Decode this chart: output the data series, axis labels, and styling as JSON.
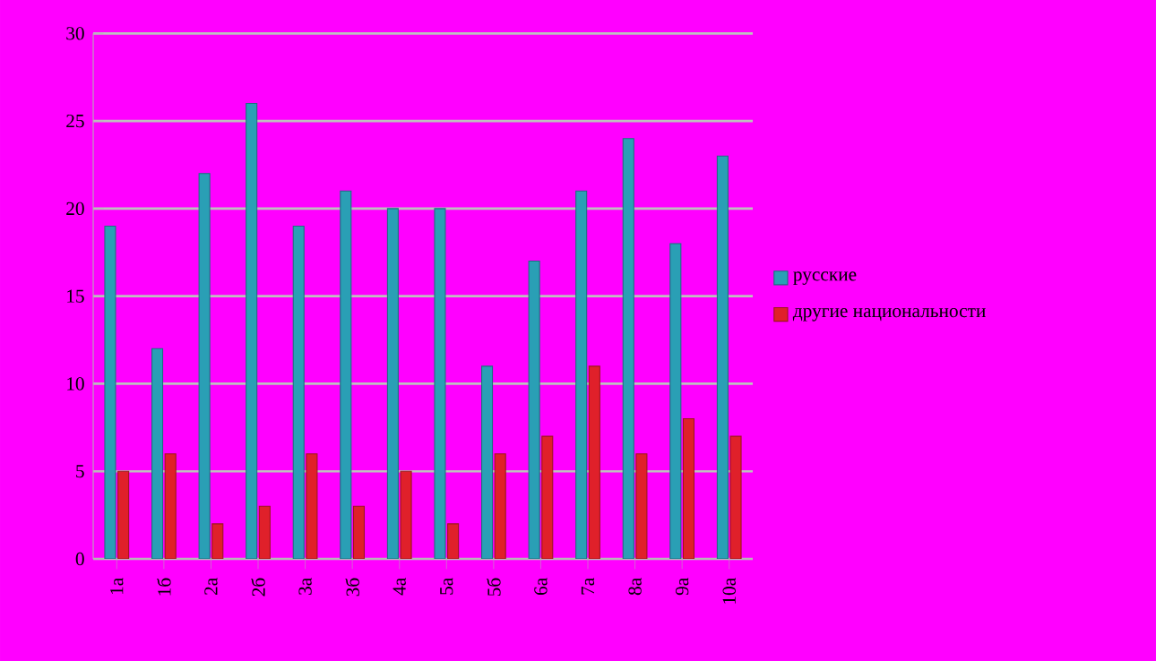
{
  "chart_data": {
    "type": "bar",
    "categories": [
      "1а",
      "1б",
      "2а",
      "2б",
      "3а",
      "3б",
      "4а",
      "5а",
      "5б",
      "6а",
      "7а",
      "8а",
      "9а",
      "10а"
    ],
    "series": [
      {
        "name": "русские",
        "color": "#2a9fb5",
        "values": [
          19,
          12,
          22,
          26,
          19,
          21,
          20,
          20,
          11,
          17,
          21,
          24,
          18,
          23
        ]
      },
      {
        "name": "другие национальности",
        "color": "#e0202a",
        "values": [
          5,
          6,
          2,
          3,
          6,
          3,
          5,
          2,
          6,
          7,
          11,
          6,
          8,
          7
        ]
      }
    ],
    "ylim": [
      0,
      30
    ],
    "yticks": [
      0,
      5,
      10,
      15,
      20,
      25,
      30
    ],
    "grid": "y",
    "legend": "right"
  }
}
